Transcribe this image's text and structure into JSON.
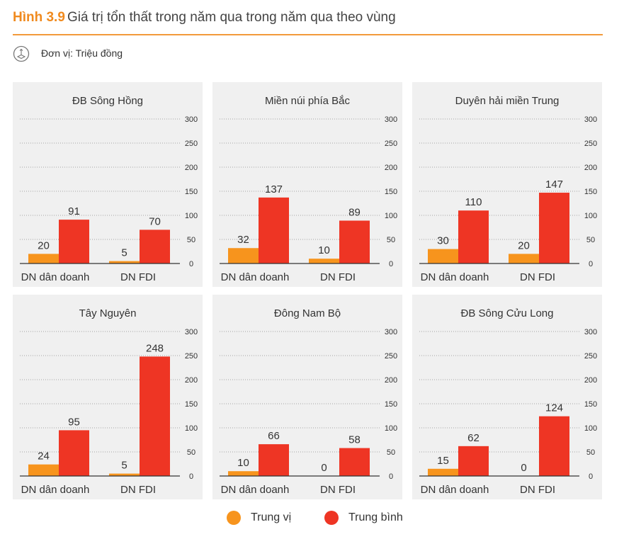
{
  "figure": {
    "label": "Hình 3.9",
    "title": "Giá trị tổn thất trong năm qua trong năm qua theo vùng",
    "unit": "Đơn vị: Triệu đồng"
  },
  "colors": {
    "median": "#f7941d",
    "mean": "#ee3524",
    "panel_bg": "#f0f0f0",
    "accent": "#f08a1e"
  },
  "legend": {
    "median": "Trung vị",
    "mean": "Trung bình"
  },
  "chart_data": [
    {
      "type": "bar",
      "title": "ĐB Sông Hồng",
      "categories": [
        "DN dân doanh",
        "DN FDI"
      ],
      "series": [
        {
          "name": "Trung vị",
          "values": [
            20,
            5
          ]
        },
        {
          "name": "Trung bình",
          "values": [
            91,
            70
          ]
        }
      ],
      "ylim": [
        0,
        300
      ],
      "yticks": [
        0,
        50,
        100,
        150,
        200,
        250,
        300
      ]
    },
    {
      "type": "bar",
      "title": "Miền núi phía Bắc",
      "categories": [
        "DN dân doanh",
        "DN FDI"
      ],
      "series": [
        {
          "name": "Trung vị",
          "values": [
            32,
            10
          ]
        },
        {
          "name": "Trung bình",
          "values": [
            137,
            89
          ]
        }
      ],
      "ylim": [
        0,
        300
      ],
      "yticks": [
        0,
        50,
        100,
        150,
        200,
        250,
        300
      ]
    },
    {
      "type": "bar",
      "title": "Duyên hải miền Trung",
      "categories": [
        "DN dân doanh",
        "DN FDI"
      ],
      "series": [
        {
          "name": "Trung vị",
          "values": [
            30,
            20
          ]
        },
        {
          "name": "Trung bình",
          "values": [
            110,
            147
          ]
        }
      ],
      "ylim": [
        0,
        300
      ],
      "yticks": [
        0,
        50,
        100,
        150,
        200,
        250,
        300
      ]
    },
    {
      "type": "bar",
      "title": "Tây Nguyên",
      "categories": [
        "DN dân doanh",
        "DN FDI"
      ],
      "series": [
        {
          "name": "Trung vị",
          "values": [
            24,
            5
          ]
        },
        {
          "name": "Trung bình",
          "values": [
            95,
            248
          ]
        }
      ],
      "ylim": [
        0,
        300
      ],
      "yticks": [
        0,
        50,
        100,
        150,
        200,
        250,
        300
      ]
    },
    {
      "type": "bar",
      "title": "Đông Nam Bộ",
      "categories": [
        "DN dân doanh",
        "DN FDI"
      ],
      "series": [
        {
          "name": "Trung vị",
          "values": [
            10,
            0
          ]
        },
        {
          "name": "Trung bình",
          "values": [
            66,
            58
          ]
        }
      ],
      "ylim": [
        0,
        300
      ],
      "yticks": [
        0,
        50,
        100,
        150,
        200,
        250,
        300
      ]
    },
    {
      "type": "bar",
      "title": "ĐB Sông Cửu Long",
      "categories": [
        "DN dân doanh",
        "DN FDI"
      ],
      "series": [
        {
          "name": "Trung vị",
          "values": [
            15,
            0
          ]
        },
        {
          "name": "Trung bình",
          "values": [
            62,
            124
          ]
        }
      ],
      "ylim": [
        0,
        300
      ],
      "yticks": [
        0,
        50,
        100,
        150,
        200,
        250,
        300
      ]
    }
  ]
}
